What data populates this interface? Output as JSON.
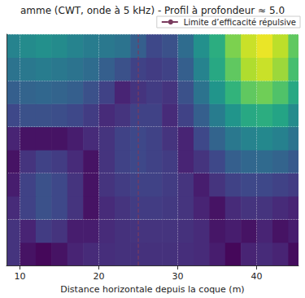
{
  "chart_data": {
    "type": "heatmap",
    "title": "amme (CWT, onde à 5 kHz) - Profil à profondeur ≈ 5.0",
    "x_label": "Distance horizontale depuis la coque (m)",
    "xlim": [
      8.3,
      45.3
    ],
    "xticks": [
      10,
      20,
      30,
      40
    ],
    "ylim": [
      0,
      5
    ],
    "yticks": [
      1,
      2,
      3,
      4
    ],
    "tick_labels": "x",
    "grid": true,
    "legend": "upper right",
    "color_range": [
      0,
      1
    ],
    "heatmap": {
      "x": [
        9,
        11,
        13,
        15,
        17,
        19,
        21,
        23,
        25,
        27,
        29,
        31,
        33,
        35,
        37,
        39,
        41,
        43,
        45
      ],
      "y": [
        0.25,
        0.75,
        1.25,
        1.75,
        2.25,
        2.75,
        3.25,
        3.75,
        4.25,
        4.75
      ],
      "values": [
        [
          0.15,
          0.05,
          0.02,
          0.05,
          0.1,
          0.12,
          0.13,
          0.14,
          0.14,
          0.14,
          0.14,
          0.13,
          0.12,
          0.08,
          0.02,
          0.1,
          0.12,
          0.1,
          0.03
        ],
        [
          0.15,
          0.1,
          0.18,
          0.15,
          0.08,
          0.08,
          0.12,
          0.14,
          0.15,
          0.15,
          0.15,
          0.14,
          0.12,
          0.06,
          0.08,
          0.05,
          0.1,
          0.05,
          0.08
        ],
        [
          0.12,
          0.2,
          0.25,
          0.22,
          0.15,
          0.05,
          0.12,
          0.15,
          0.18,
          0.18,
          0.17,
          0.15,
          0.1,
          0.05,
          0.12,
          0.15,
          0.15,
          0.12,
          0.1
        ],
        [
          0.08,
          0.2,
          0.25,
          0.22,
          0.15,
          0.05,
          0.15,
          0.18,
          0.2,
          0.2,
          0.18,
          0.15,
          0.08,
          0.15,
          0.2,
          0.22,
          0.22,
          0.2,
          0.18
        ],
        [
          0.05,
          0.15,
          0.2,
          0.18,
          0.12,
          0.05,
          0.15,
          0.2,
          0.22,
          0.2,
          0.18,
          0.1,
          0.15,
          0.22,
          0.3,
          0.33,
          0.34,
          0.32,
          0.28
        ],
        [
          0.1,
          0.05,
          0.05,
          0.05,
          0.08,
          0.12,
          0.15,
          0.2,
          0.22,
          0.2,
          0.15,
          0.1,
          0.22,
          0.32,
          0.4,
          0.45,
          0.47,
          0.44,
          0.38
        ],
        [
          0.22,
          0.25,
          0.25,
          0.24,
          0.22,
          0.18,
          0.12,
          0.15,
          0.2,
          0.2,
          0.12,
          0.2,
          0.3,
          0.42,
          0.52,
          0.6,
          0.62,
          0.58,
          0.48
        ],
        [
          0.3,
          0.32,
          0.33,
          0.32,
          0.3,
          0.25,
          0.2,
          0.1,
          0.15,
          0.18,
          0.15,
          0.25,
          0.38,
          0.52,
          0.65,
          0.75,
          0.78,
          0.72,
          0.6
        ],
        [
          0.38,
          0.4,
          0.42,
          0.4,
          0.38,
          0.35,
          0.3,
          0.25,
          0.2,
          0.18,
          0.2,
          0.3,
          0.45,
          0.6,
          0.75,
          0.88,
          0.92,
          0.85,
          0.7
        ],
        [
          0.45,
          0.48,
          0.5,
          0.48,
          0.45,
          0.42,
          0.4,
          0.38,
          0.3,
          0.22,
          0.25,
          0.35,
          0.5,
          0.62,
          0.8,
          0.92,
          0.97,
          0.9,
          0.75
        ]
      ]
    },
    "lines": [
      {
        "name": "Limite d’efficacité répulsive",
        "x": 25,
        "color": "#7a3b5e",
        "line_style": "dashed"
      }
    ]
  }
}
